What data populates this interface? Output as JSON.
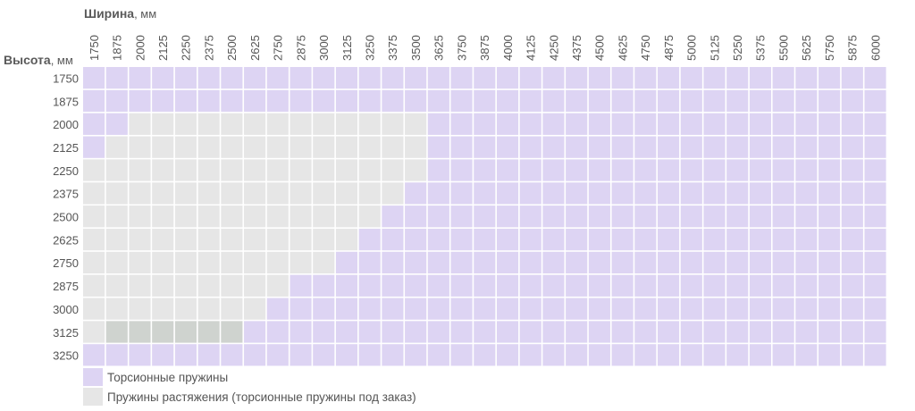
{
  "chart_data": {
    "type": "heatmap",
    "x_axis_title": "Ширина",
    "x_axis_unit": ", мм",
    "y_axis_title": "Высота",
    "y_axis_unit": ", мм",
    "x_values": [
      1750,
      1875,
      2000,
      2125,
      2250,
      2375,
      2500,
      2625,
      2750,
      2875,
      3000,
      3125,
      3250,
      3375,
      3500,
      3625,
      3750,
      3875,
      4000,
      4125,
      4250,
      4375,
      4500,
      4625,
      4750,
      4875,
      5000,
      5125,
      5250,
      5375,
      5500,
      5625,
      5750,
      5875,
      6000
    ],
    "y_values": [
      1750,
      1875,
      2000,
      2125,
      2250,
      2375,
      2500,
      2625,
      2750,
      2875,
      3000,
      3125,
      3250
    ],
    "categories": {
      "T": {
        "label": "Торсионные пружины",
        "color": "#ddd4f3"
      },
      "E": {
        "label": "Пружины растяжения (торсионные пружины под заказ)",
        "color": "#e6e6e6"
      },
      "D": {
        "label": "",
        "color": "#cfd3cf"
      }
    },
    "legend": [
      "T",
      "E"
    ],
    "cells": [
      "TTTTTTTTTTTTTTTTTTTTTTTTTTTTTTTTTTT",
      "TTTTTTTTTTTTTTTTTTTTTTTTTTTTTTTTTTT",
      "TTEEEEEEEEEEEEETTTTTTTTTTTTTTTTTTTT",
      "TEEEEEEEEEEEEEETTTTTTTTTTTTTTTTTTTT",
      "EEEEEEEEEEEEEEETTTTTTTTTTTTTTTTTTTT",
      "EEEEEEEEEEEEEETTTTTTTTTTTTTTTTTTTTT",
      "EEEEEEEEEEEEETTTTTTTTTTTTTTTTTTTTTT",
      "EEEEEEEEEEEETTTTTTTTTTTTTTTTTTTTTTT",
      "EEEEEEEEEEETTTTTTTTTTTTTTTTTTTTTTTT",
      "EEEEEEEEETTTTTTTTTTTTTTTTTTTTTTTTTT",
      "EEEEEEEETTTTTTTTTTTTTTTTTTTTTTTTTTT",
      "EDDDDDDTTTTTTTTTTTTTTTTTTTTTTTTTTTT",
      "TTTTTTTTTTTTTTTTTTTTTTTTTTTTTTTTTTT"
    ]
  }
}
